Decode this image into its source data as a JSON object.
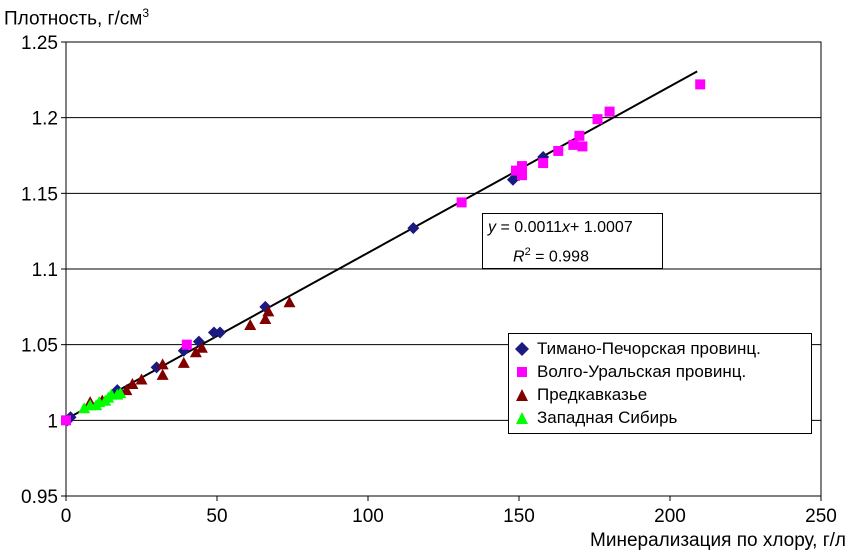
{
  "chart_data": {
    "type": "scatter",
    "ylabel_text": "Плотность, г/см",
    "ylabel_sup": "3",
    "xlabel": "Минерализация по хлору, г/л",
    "xlim": [
      0,
      250
    ],
    "ylim": [
      0.95,
      1.25
    ],
    "x_ticks": [
      "0",
      "50",
      "100",
      "150",
      "200",
      "250"
    ],
    "y_ticks": [
      "0.95",
      "1",
      "1.05",
      "1.1",
      "1.15",
      "1.2",
      "1.25"
    ],
    "grid": true,
    "legend_position": "bottom-right",
    "trendline": {
      "type": "linear",
      "slope": 0.0011,
      "intercept": 1.0007,
      "x_range": [
        0,
        209
      ],
      "color": "#000000",
      "equation_parts": [
        "y",
        " = 0.0011",
        "x",
        "+ 1.0007"
      ],
      "r2_parts": [
        "R",
        "2",
        " = 0.998"
      ]
    },
    "series": [
      {
        "name": "Тимано-Печорская провинц.",
        "marker": "diamond",
        "color": "#1a1a80",
        "points": [
          [
            0.5,
            1.0
          ],
          [
            1.5,
            1.002
          ],
          [
            17,
            1.02
          ],
          [
            30,
            1.035
          ],
          [
            39,
            1.046
          ],
          [
            44,
            1.052
          ],
          [
            49,
            1.058
          ],
          [
            51,
            1.058
          ],
          [
            66,
            1.075
          ],
          [
            115,
            1.127
          ],
          [
            148,
            1.159
          ],
          [
            150,
            1.162
          ],
          [
            158,
            1.174
          ]
        ]
      },
      {
        "name": "Волго-Уральская провинц.",
        "marker": "square",
        "color": "#ff00ff",
        "points": [
          [
            0,
            1.0
          ],
          [
            40,
            1.05
          ],
          [
            131,
            1.144
          ],
          [
            149,
            1.165
          ],
          [
            151,
            1.162
          ],
          [
            151,
            1.168
          ],
          [
            158,
            1.17
          ],
          [
            163,
            1.178
          ],
          [
            168,
            1.182
          ],
          [
            170,
            1.188
          ],
          [
            171,
            1.181
          ],
          [
            176,
            1.199
          ],
          [
            180,
            1.204
          ],
          [
            210,
            1.222
          ]
        ]
      },
      {
        "name": "Предкавказье",
        "marker": "triangle",
        "color": "#800000",
        "points": [
          [
            8,
            1.012
          ],
          [
            12,
            1.013
          ],
          [
            20,
            1.02
          ],
          [
            22,
            1.024
          ],
          [
            25,
            1.027
          ],
          [
            32,
            1.03
          ],
          [
            32,
            1.037
          ],
          [
            39,
            1.038
          ],
          [
            43,
            1.045
          ],
          [
            45,
            1.048
          ],
          [
            61,
            1.063
          ],
          [
            66,
            1.067
          ],
          [
            67,
            1.072
          ],
          [
            74,
            1.078
          ]
        ]
      },
      {
        "name": "Западная Сибирь",
        "marker": "triangle",
        "color": "#00ff00",
        "points": [
          [
            6,
            1.008
          ],
          [
            8,
            1.01
          ],
          [
            10,
            1.01
          ],
          [
            11,
            1.012
          ],
          [
            13,
            1.013
          ],
          [
            14,
            1.015
          ],
          [
            15,
            1.017
          ],
          [
            17,
            1.017
          ],
          [
            18,
            1.018
          ]
        ]
      }
    ]
  }
}
